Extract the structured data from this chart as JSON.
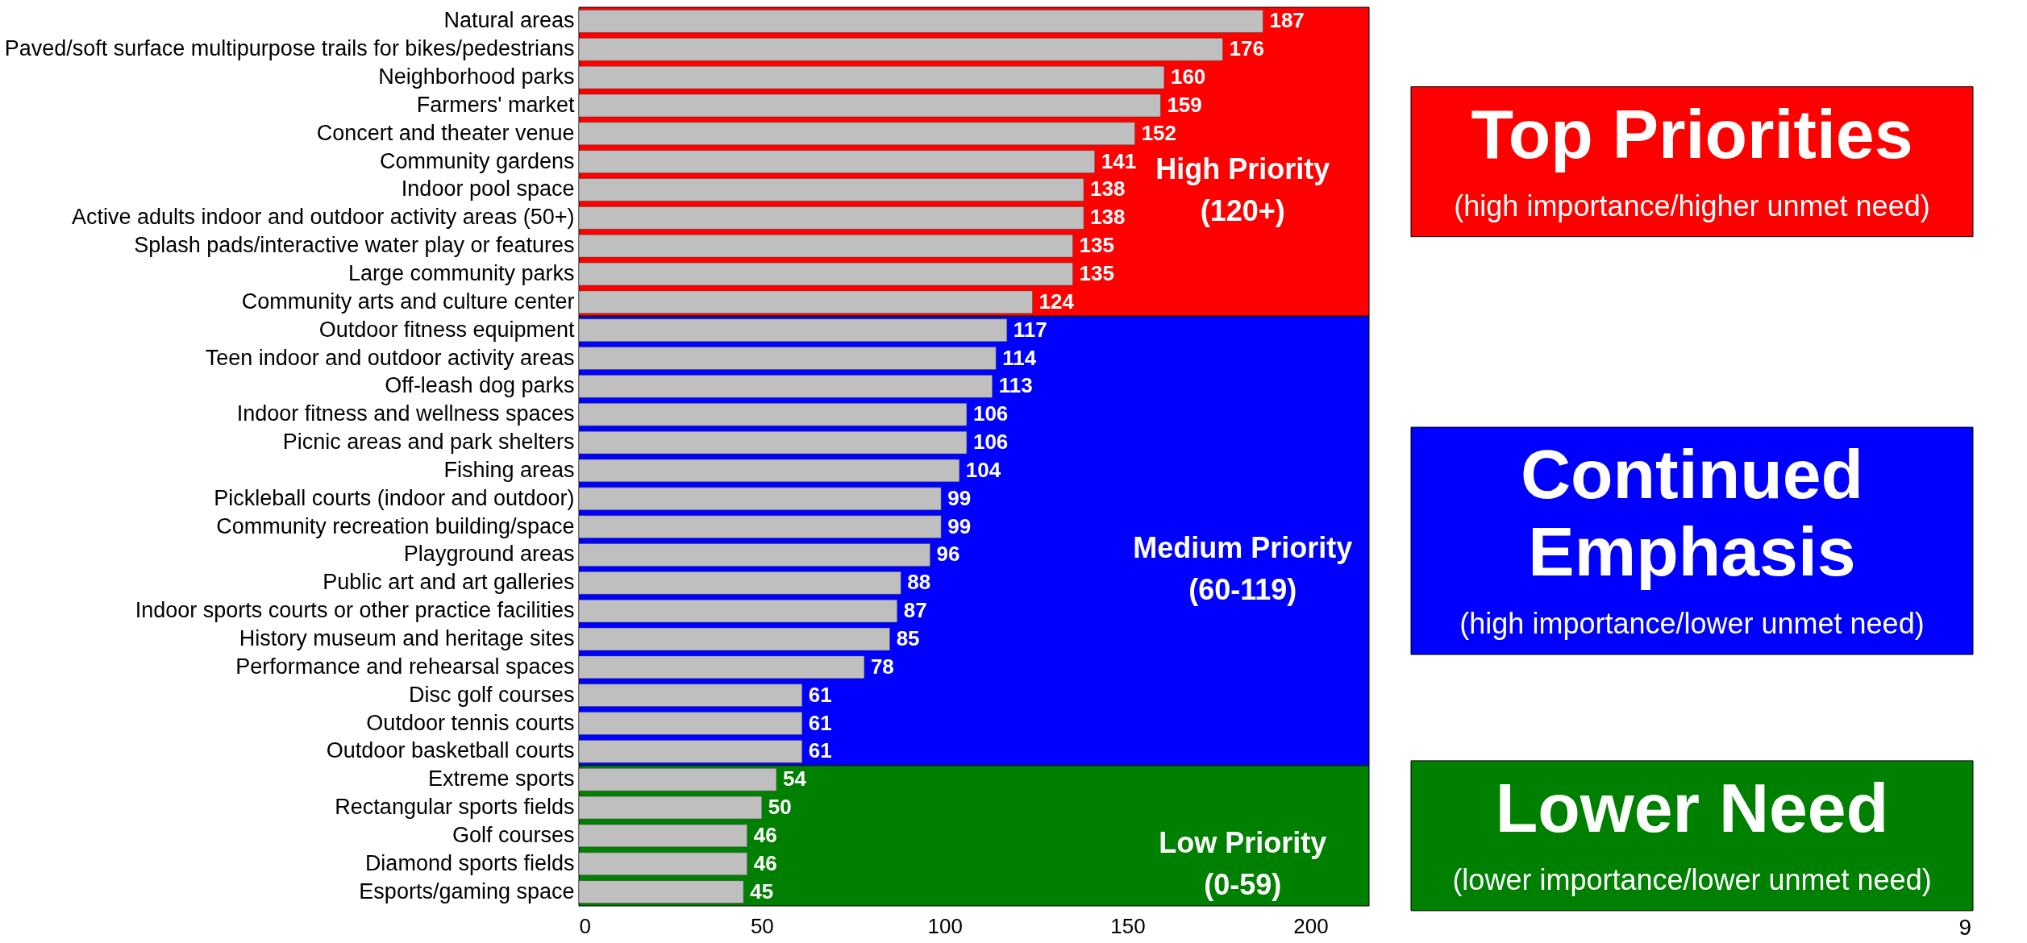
{
  "chart_data": {
    "type": "bar",
    "orientation": "horizontal",
    "color": "#bfbfbf",
    "data_labels": true,
    "grid": false,
    "categories": [
      "Natural areas",
      "Paved/soft surface multipurpose trails for bikes/pedestrians",
      "Neighborhood parks",
      "Farmers' market",
      "Concert and theater venue",
      "Community gardens",
      "Indoor pool space",
      "Active adults indoor and outdoor activity areas (50+)",
      "Splash pads/interactive water play or features",
      "Large community parks",
      "Community arts and culture center",
      "Outdoor fitness equipment",
      "Teen indoor and outdoor activity areas",
      "Off-leash dog parks",
      "Indoor fitness and wellness spaces",
      "Picnic areas and park shelters",
      "Fishing areas",
      "Pickleball courts (indoor and outdoor)",
      "Community recreation building/space",
      "Playground areas",
      "Public art and art galleries",
      "Indoor sports courts or other practice facilities",
      "History museum and heritage sites",
      "Performance and rehearsal spaces",
      "Disc golf courses",
      "Outdoor tennis courts",
      "Outdoor basketball courts",
      "Extreme sports",
      "Rectangular sports fields",
      "Golf courses",
      "Diamond sports fields",
      "Esports/gaming space"
    ],
    "values": [
      187,
      176,
      160,
      159,
      152,
      141,
      138,
      138,
      135,
      135,
      124,
      117,
      114,
      113,
      106,
      106,
      104,
      99,
      99,
      96,
      88,
      87,
      85,
      78,
      61,
      61,
      61,
      54,
      50,
      46,
      46,
      45
    ],
    "xlim": [
      0,
      216
    ],
    "xticks": [
      0,
      50,
      100,
      150,
      200
    ],
    "bands": [
      {
        "axis": "y",
        "from": "Natural areas",
        "to": "Community arts and culture center",
        "label": "High Priority\n(120+)",
        "color": "#ff0000"
      },
      {
        "axis": "y",
        "from": "Outdoor fitness equipment",
        "to": "Outdoor basketball courts",
        "label": "Medium Priority\n(60-119)",
        "color": "#0000ff"
      },
      {
        "axis": "y",
        "from": "Extreme sports",
        "to": "Esports/gaming space",
        "label": "Low Priority\n(0-59)",
        "color": "#008000"
      }
    ],
    "annotations": [
      "Top Priorities",
      "(high importance/higher unmet need)",
      "Continued\nEmphasis",
      "(high importance/lower unmet need)",
      "Lower Need",
      "(lower importance/lower unmet need)",
      "9"
    ]
  }
}
